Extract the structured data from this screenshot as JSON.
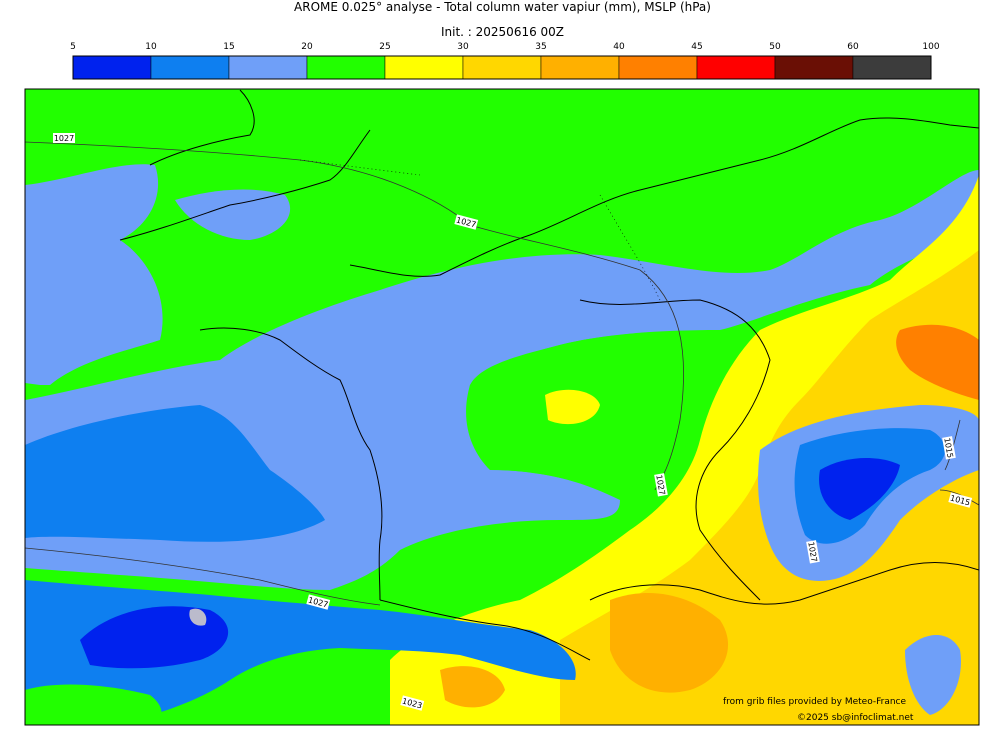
{
  "title": "AROME 0.025° analyse - Total column water vapiur (mm), MSLP (hPa)",
  "subtitle": "Init. : 20250616 00Z",
  "colorbar": {
    "ticks": [
      "5",
      "10",
      "15",
      "20",
      "25",
      "30",
      "35",
      "40",
      "45",
      "50",
      "60",
      "100"
    ],
    "colors": [
      "#0022ee",
      "#0e7ff0",
      "#6f9ff8",
      "#22ff00",
      "#ffff00",
      "#ffd700",
      "#ffb000",
      "#ff8000",
      "#ff0000",
      "#6a0f05",
      "#3c3c3c"
    ]
  },
  "isobar_labels": [
    {
      "id": "isobar-label-1",
      "text": "1027"
    },
    {
      "id": "isobar-label-2",
      "text": "1027"
    },
    {
      "id": "isobar-label-3",
      "text": "1027"
    },
    {
      "id": "isobar-label-4",
      "text": "1027"
    },
    {
      "id": "isobar-label-5",
      "text": "1027"
    },
    {
      "id": "isobar-label-6",
      "text": "1015"
    },
    {
      "id": "isobar-label-7",
      "text": "1015"
    },
    {
      "id": "isobar-label-8",
      "text": "1023"
    }
  ],
  "credits": {
    "line1": "from grib files provided by Meteo-France",
    "line2": "©2025 sb@infoclimat.net"
  }
}
